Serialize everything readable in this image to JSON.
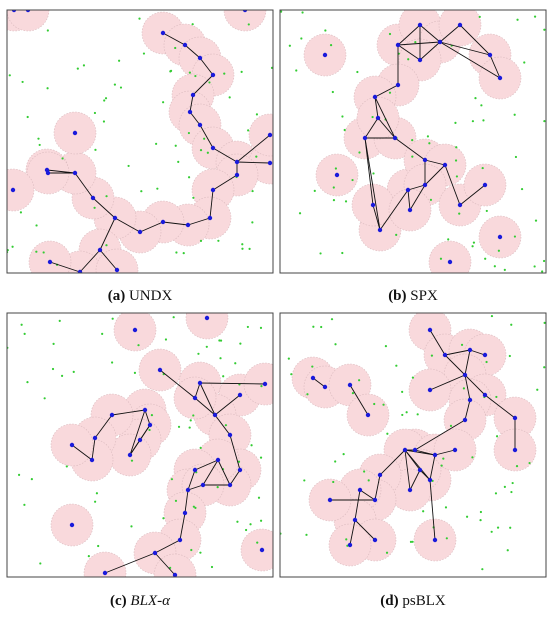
{
  "panels": [
    {
      "label": "(a)",
      "name": "UNDX"
    },
    {
      "label": "(b)",
      "name": "SPX"
    },
    {
      "label": "(c)",
      "name": "BLX-α"
    },
    {
      "label": "(d)",
      "name": "psBLX"
    }
  ]
}
